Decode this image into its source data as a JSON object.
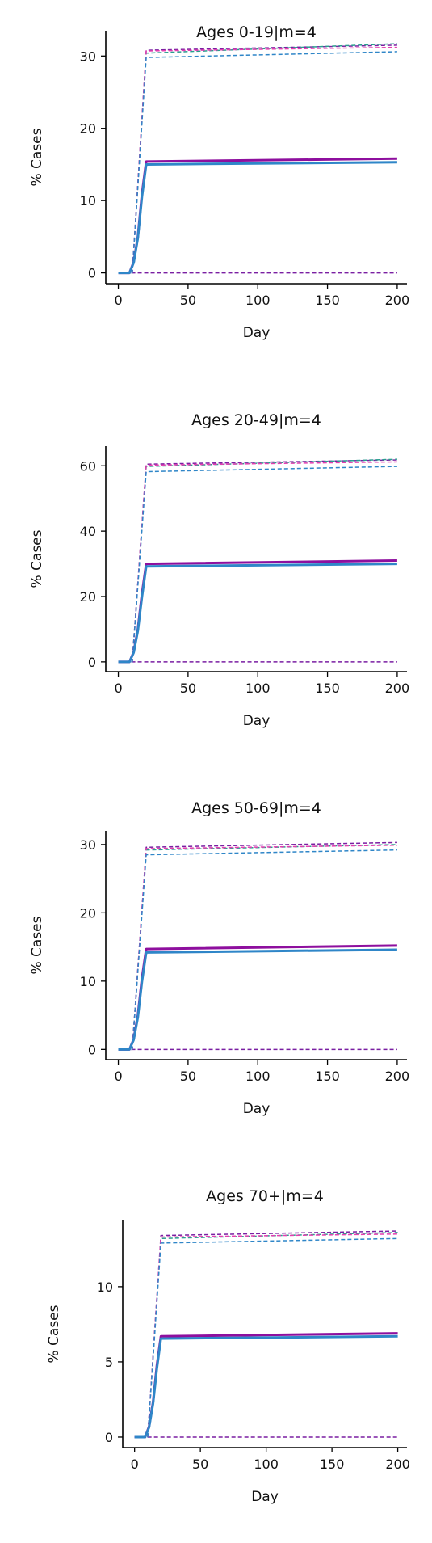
{
  "chart_data": [
    {
      "type": "line",
      "title": "Ages 0-19|m=4",
      "xlabel": "Day",
      "ylabel": "% Cases",
      "xlim": [
        -9,
        207
      ],
      "ylim": [
        -1.5,
        33.5
      ],
      "xticks": [
        0,
        50,
        100,
        150,
        200
      ],
      "yticks": [
        0,
        10,
        20,
        30
      ],
      "grid": false,
      "legend": "none",
      "series": [
        {
          "style": "solid",
          "color": "#8e0f9e",
          "x": [
            0,
            8,
            11,
            14,
            17,
            20,
            200
          ],
          "y": [
            0,
            0,
            1.5,
            5,
            11,
            15.4,
            15.8
          ]
        },
        {
          "style": "solid",
          "color": "#2f86c8",
          "x": [
            0,
            8,
            11,
            14,
            17,
            20,
            200
          ],
          "y": [
            0,
            0,
            1.4,
            4.8,
            10.6,
            15.0,
            15.3
          ]
        },
        {
          "style": "dashed",
          "color": "#7a1fa2",
          "x": [
            0,
            200
          ],
          "y": [
            0,
            0
          ]
        },
        {
          "style": "dashed",
          "color": "#7a1fa2",
          "x": [
            0,
            10,
            20,
            200
          ],
          "y": [
            0,
            0,
            30.8,
            31.5
          ]
        },
        {
          "style": "dashed",
          "color": "#2a9d8f",
          "x": [
            0,
            10,
            20,
            200
          ],
          "y": [
            0,
            0,
            30.4,
            31.7
          ]
        },
        {
          "style": "dashed",
          "color": "#e53eb0",
          "x": [
            0,
            10,
            20,
            200
          ],
          "y": [
            0,
            0,
            30.7,
            31.2
          ]
        },
        {
          "style": "dashed",
          "color": "#2f86c8",
          "x": [
            0,
            10,
            20,
            200
          ],
          "y": [
            0,
            0,
            29.8,
            30.6
          ]
        }
      ]
    },
    {
      "type": "line",
      "title": "Ages 20-49|m=4",
      "xlabel": "Day",
      "ylabel": "% Cases",
      "xlim": [
        -9,
        207
      ],
      "ylim": [
        -3,
        66
      ],
      "xticks": [
        0,
        50,
        100,
        150,
        200
      ],
      "yticks": [
        0,
        20,
        40,
        60
      ],
      "grid": false,
      "legend": "none",
      "series": [
        {
          "style": "solid",
          "color": "#8e0f9e",
          "x": [
            0,
            8,
            11,
            14,
            17,
            20,
            200
          ],
          "y": [
            0,
            0,
            3,
            10,
            21,
            30.0,
            31.0
          ]
        },
        {
          "style": "solid",
          "color": "#2f86c8",
          "x": [
            0,
            8,
            11,
            14,
            17,
            20,
            200
          ],
          "y": [
            0,
            0,
            2.8,
            9.5,
            20,
            29.2,
            30.0
          ]
        },
        {
          "style": "dashed",
          "color": "#7a1fa2",
          "x": [
            0,
            200
          ],
          "y": [
            0,
            0
          ]
        },
        {
          "style": "dashed",
          "color": "#7a1fa2",
          "x": [
            0,
            10,
            20,
            200
          ],
          "y": [
            0,
            0,
            60.5,
            61.8
          ]
        },
        {
          "style": "dashed",
          "color": "#2a9d8f",
          "x": [
            0,
            10,
            20,
            200
          ],
          "y": [
            0,
            0,
            59.8,
            62.0
          ]
        },
        {
          "style": "dashed",
          "color": "#e53eb0",
          "x": [
            0,
            10,
            20,
            200
          ],
          "y": [
            0,
            0,
            60.2,
            61.2
          ]
        },
        {
          "style": "dashed",
          "color": "#2f86c8",
          "x": [
            0,
            10,
            20,
            200
          ],
          "y": [
            0,
            0,
            58.2,
            59.8
          ]
        }
      ]
    },
    {
      "type": "line",
      "title": "Ages 50-69|m=4",
      "xlabel": "Day",
      "ylabel": "% Cases",
      "xlim": [
        -9,
        207
      ],
      "ylim": [
        -1.5,
        32
      ],
      "xticks": [
        0,
        50,
        100,
        150,
        200
      ],
      "yticks": [
        0,
        10,
        20,
        30
      ],
      "grid": false,
      "legend": "none",
      "series": [
        {
          "style": "solid",
          "color": "#8e0f9e",
          "x": [
            0,
            8,
            11,
            14,
            17,
            20,
            200
          ],
          "y": [
            0,
            0,
            1.5,
            5,
            10.5,
            14.7,
            15.2
          ]
        },
        {
          "style": "solid",
          "color": "#2f86c8",
          "x": [
            0,
            8,
            11,
            14,
            17,
            20,
            200
          ],
          "y": [
            0,
            0,
            1.4,
            4.7,
            10,
            14.2,
            14.6
          ]
        },
        {
          "style": "dashed",
          "color": "#7a1fa2",
          "x": [
            0,
            200
          ],
          "y": [
            0,
            0
          ]
        },
        {
          "style": "dashed",
          "color": "#7a1fa2",
          "x": [
            0,
            10,
            20,
            200
          ],
          "y": [
            0,
            0,
            29.6,
            30.3
          ]
        },
        {
          "style": "dashed",
          "color": "#2a9d8f",
          "x": [
            0,
            10,
            20,
            200
          ],
          "y": [
            0,
            0,
            29.2,
            30.0
          ]
        },
        {
          "style": "dashed",
          "color": "#e53eb0",
          "x": [
            0,
            10,
            20,
            200
          ],
          "y": [
            0,
            0,
            29.4,
            29.9
          ]
        },
        {
          "style": "dashed",
          "color": "#2f86c8",
          "x": [
            0,
            10,
            20,
            200
          ],
          "y": [
            0,
            0,
            28.5,
            29.2
          ]
        }
      ]
    },
    {
      "type": "line",
      "title": "Ages 70+|m=4",
      "xlabel": "Day",
      "ylabel": "% Cases",
      "xlim": [
        -9,
        207
      ],
      "ylim": [
        -0.7,
        14.4
      ],
      "xticks": [
        0,
        50,
        100,
        150,
        200
      ],
      "yticks": [
        0,
        5,
        10
      ],
      "grid": false,
      "legend": "none",
      "series": [
        {
          "style": "solid",
          "color": "#8e0f9e",
          "x": [
            0,
            8,
            11,
            14,
            17,
            20,
            200
          ],
          "y": [
            0,
            0,
            0.7,
            2.3,
            4.8,
            6.7,
            6.9
          ]
        },
        {
          "style": "solid",
          "color": "#2f86c8",
          "x": [
            0,
            8,
            11,
            14,
            17,
            20,
            200
          ],
          "y": [
            0,
            0,
            0.65,
            2.2,
            4.6,
            6.55,
            6.7
          ]
        },
        {
          "style": "dashed",
          "color": "#7a1fa2",
          "x": [
            0,
            200
          ],
          "y": [
            0,
            0
          ]
        },
        {
          "style": "dashed",
          "color": "#7a1fa2",
          "x": [
            0,
            10,
            20,
            200
          ],
          "y": [
            0,
            0,
            13.4,
            13.7
          ]
        },
        {
          "style": "dashed",
          "color": "#2a9d8f",
          "x": [
            0,
            10,
            20,
            200
          ],
          "y": [
            0,
            0,
            13.2,
            13.6
          ]
        },
        {
          "style": "dashed",
          "color": "#e53eb0",
          "x": [
            0,
            10,
            20,
            200
          ],
          "y": [
            0,
            0,
            13.3,
            13.5
          ]
        },
        {
          "style": "dashed",
          "color": "#2f86c8",
          "x": [
            0,
            10,
            20,
            200
          ],
          "y": [
            0,
            0,
            12.9,
            13.2
          ]
        }
      ]
    }
  ]
}
